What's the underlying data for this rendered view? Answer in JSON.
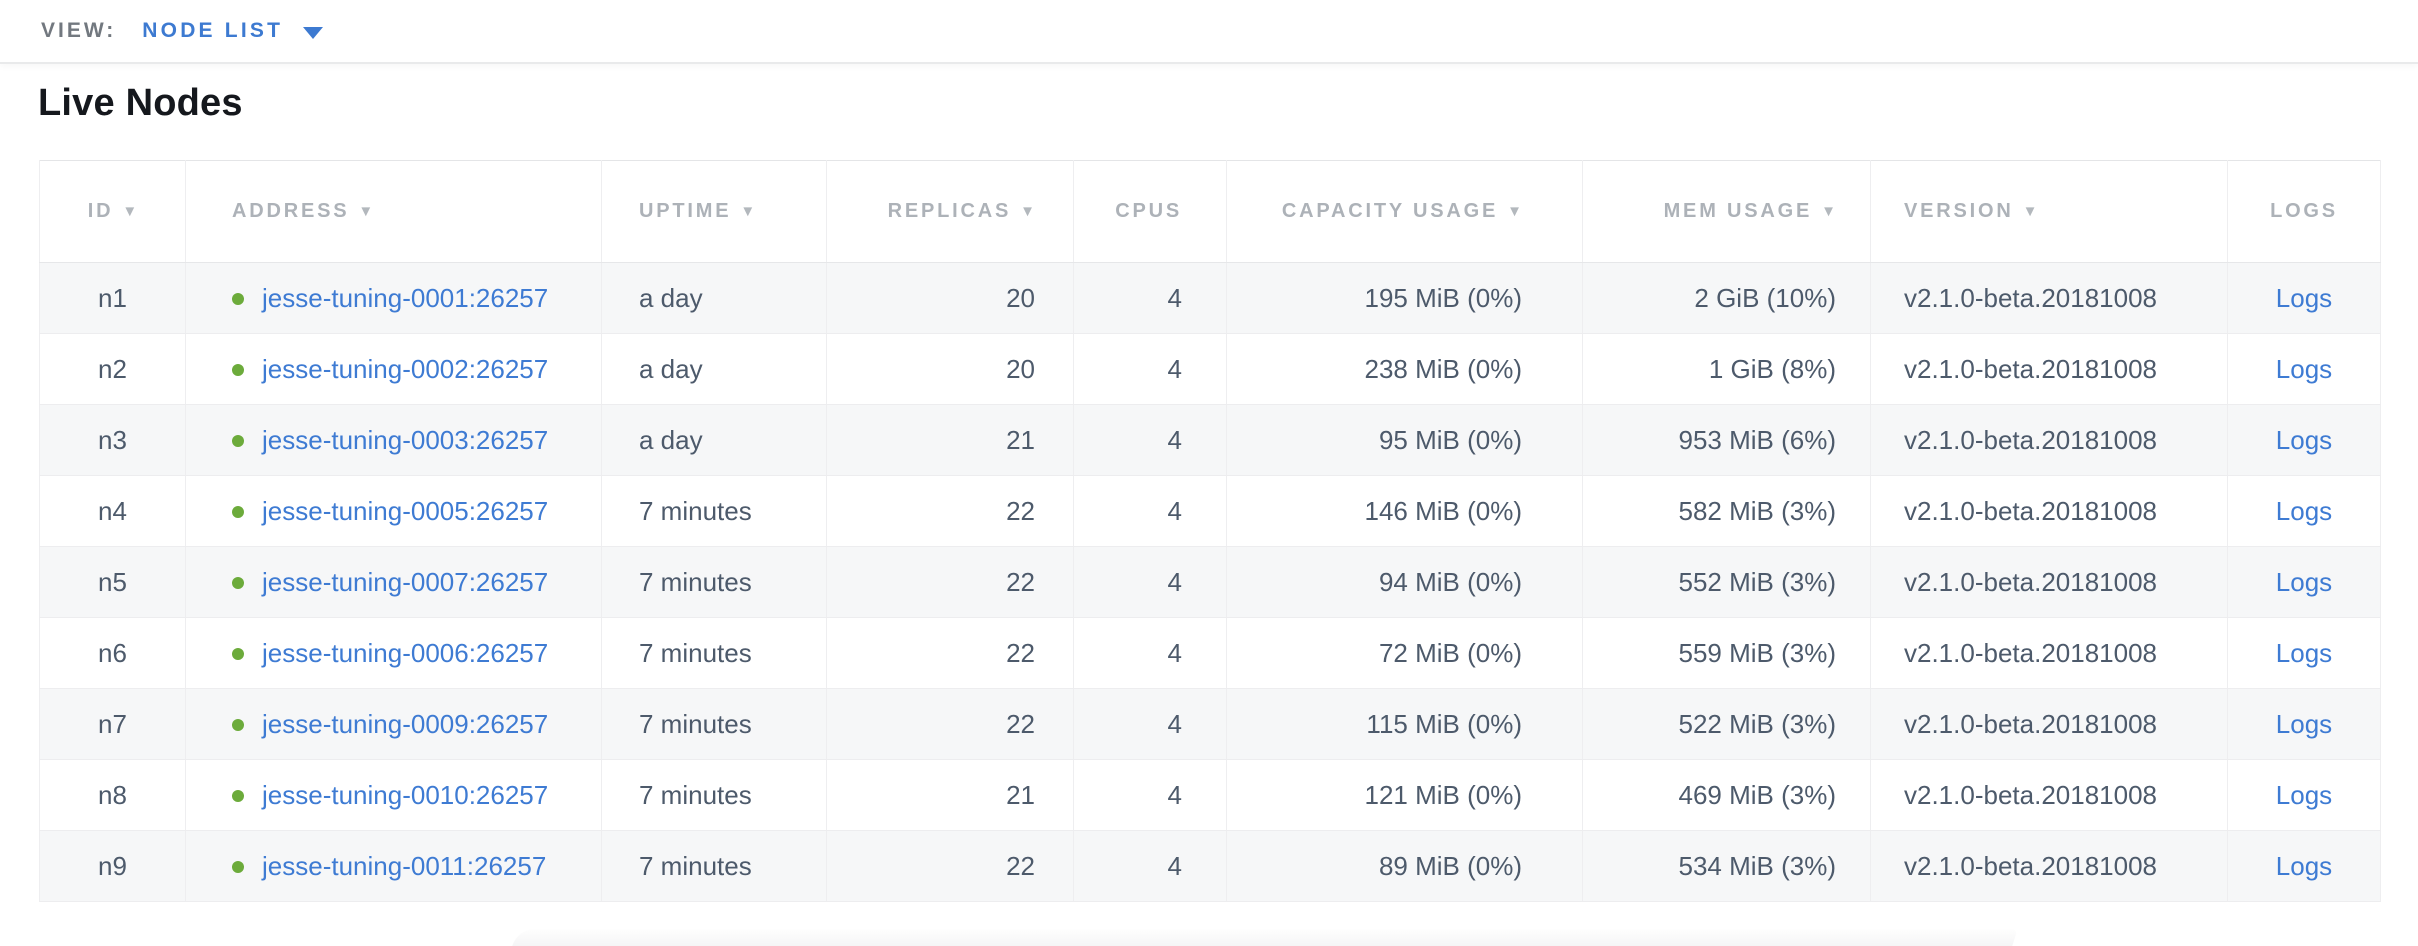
{
  "view_bar": {
    "label": "VIEW:",
    "selected": "NODE LIST"
  },
  "title": "Live Nodes",
  "icons": {
    "sort_icon": "▼",
    "caret_down_icon": "dropdown caret",
    "live_status_icon": "green dot"
  },
  "colors": {
    "link_blue": "#3e7bd3",
    "accent_blue": "#3d7ad1",
    "live_green": "#6cab3b",
    "header_gray": "#adb2b8",
    "cell_text": "#4d5a6b",
    "row_stripe": "#f6f7f8"
  },
  "table": {
    "columns": [
      {
        "key": "id",
        "label": "ID",
        "sortable": true
      },
      {
        "key": "address",
        "label": "ADDRESS",
        "sortable": true
      },
      {
        "key": "uptime",
        "label": "UPTIME",
        "sortable": true
      },
      {
        "key": "replicas",
        "label": "REPLICAS",
        "sortable": true
      },
      {
        "key": "cpus",
        "label": "CPUS",
        "sortable": false
      },
      {
        "key": "capacity",
        "label": "CAPACITY USAGE",
        "sortable": true
      },
      {
        "key": "mem",
        "label": "MEM USAGE",
        "sortable": true
      },
      {
        "key": "version",
        "label": "VERSION",
        "sortable": true
      },
      {
        "key": "logs",
        "label": "LOGS",
        "sortable": false
      }
    ],
    "logs_label": "Logs",
    "rows": [
      {
        "id": "n1",
        "address": "jesse-tuning-0001:26257",
        "status": "live",
        "uptime": "a day",
        "replicas": "20",
        "cpus": "4",
        "capacity": "195 MiB (0%)",
        "mem": "2 GiB (10%)",
        "version": "v2.1.0-beta.20181008"
      },
      {
        "id": "n2",
        "address": "jesse-tuning-0002:26257",
        "status": "live",
        "uptime": "a day",
        "replicas": "20",
        "cpus": "4",
        "capacity": "238 MiB (0%)",
        "mem": "1 GiB (8%)",
        "version": "v2.1.0-beta.20181008"
      },
      {
        "id": "n3",
        "address": "jesse-tuning-0003:26257",
        "status": "live",
        "uptime": "a day",
        "replicas": "21",
        "cpus": "4",
        "capacity": "95 MiB (0%)",
        "mem": "953 MiB (6%)",
        "version": "v2.1.0-beta.20181008"
      },
      {
        "id": "n4",
        "address": "jesse-tuning-0005:26257",
        "status": "live",
        "uptime": "7 minutes",
        "replicas": "22",
        "cpus": "4",
        "capacity": "146 MiB (0%)",
        "mem": "582 MiB (3%)",
        "version": "v2.1.0-beta.20181008"
      },
      {
        "id": "n5",
        "address": "jesse-tuning-0007:26257",
        "status": "live",
        "uptime": "7 minutes",
        "replicas": "22",
        "cpus": "4",
        "capacity": "94 MiB (0%)",
        "mem": "552 MiB (3%)",
        "version": "v2.1.0-beta.20181008"
      },
      {
        "id": "n6",
        "address": "jesse-tuning-0006:26257",
        "status": "live",
        "uptime": "7 minutes",
        "replicas": "22",
        "cpus": "4",
        "capacity": "72 MiB (0%)",
        "mem": "559 MiB (3%)",
        "version": "v2.1.0-beta.20181008"
      },
      {
        "id": "n7",
        "address": "jesse-tuning-0009:26257",
        "status": "live",
        "uptime": "7 minutes",
        "replicas": "22",
        "cpus": "4",
        "capacity": "115 MiB (0%)",
        "mem": "522 MiB (3%)",
        "version": "v2.1.0-beta.20181008"
      },
      {
        "id": "n8",
        "address": "jesse-tuning-0010:26257",
        "status": "live",
        "uptime": "7 minutes",
        "replicas": "21",
        "cpus": "4",
        "capacity": "121 MiB (0%)",
        "mem": "469 MiB (3%)",
        "version": "v2.1.0-beta.20181008"
      },
      {
        "id": "n9",
        "address": "jesse-tuning-0011:26257",
        "status": "live",
        "uptime": "7 minutes",
        "replicas": "22",
        "cpus": "4",
        "capacity": "89 MiB (0%)",
        "mem": "534 MiB (3%)",
        "version": "v2.1.0-beta.20181008"
      }
    ]
  }
}
